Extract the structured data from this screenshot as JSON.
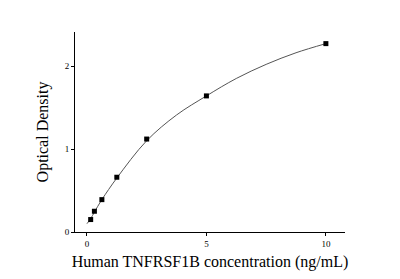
{
  "chart_data": {
    "type": "scatter",
    "x_label": "Human TNFRSF1B concentration (ng/mL)",
    "y_label": "Optical Density",
    "xlim": [
      -0.5,
      10.8
    ],
    "xticks": [
      0,
      5,
      10
    ],
    "ylim": [
      0,
      2.41
    ],
    "yticks": [
      0,
      1,
      2
    ],
    "grid": false,
    "series": [
      {
        "type": "scatter",
        "marker": "square",
        "color": "#000000",
        "x": [
          0.156,
          0.312,
          0.625,
          1.25,
          2.5,
          5,
          10
        ],
        "values": [
          0.15,
          0.25,
          0.39,
          0.66,
          1.12,
          1.64,
          2.27
        ]
      },
      {
        "type": "line",
        "line_style": "solid",
        "color": "#555555",
        "x": [
          0,
          0.156,
          0.312,
          0.625,
          1.25,
          2.5,
          3.75,
          5,
          6.25,
          7.5,
          8.75,
          10
        ],
        "values": [
          0.1,
          0.16,
          0.24,
          0.39,
          0.65,
          1.1,
          1.41,
          1.64,
          1.85,
          2.02,
          2.16,
          2.27
        ]
      }
    ]
  }
}
